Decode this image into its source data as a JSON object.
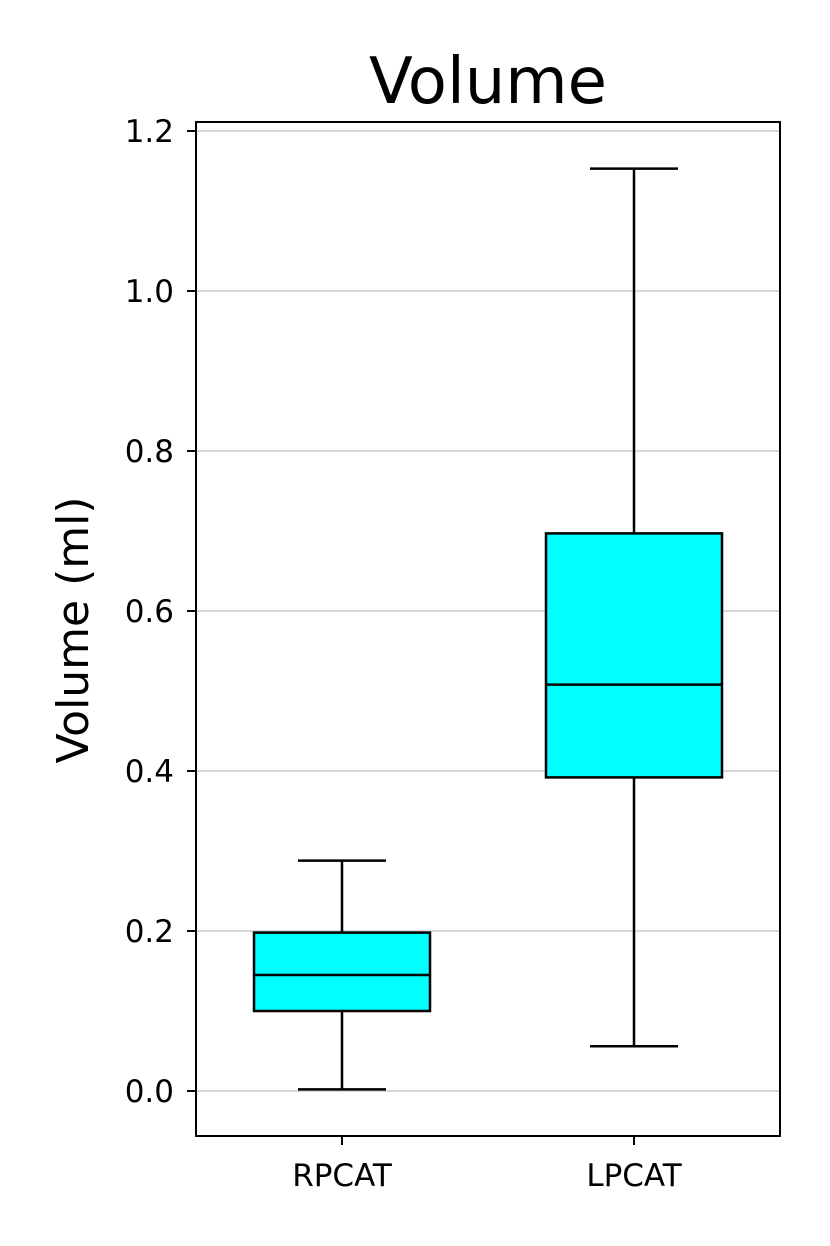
{
  "chart_data": {
    "type": "boxplot",
    "title": "Volume",
    "xlabel": "",
    "ylabel": "Volume (ml)",
    "ylim": [
      -0.055,
      1.21
    ],
    "yticks": [
      0.0,
      0.2,
      0.4,
      0.6,
      0.8,
      1.0,
      1.2
    ],
    "ytick_labels": [
      "0.0",
      "0.2",
      "0.4",
      "0.6",
      "0.8",
      "1.0",
      "1.2"
    ],
    "grid": "horizontal",
    "box_color": "#00ffff",
    "edge_color": "#000000",
    "grid_color": "#cccccc",
    "categories": [
      "RPCAT",
      "LPCAT"
    ],
    "boxes": [
      {
        "whisker_low": 0.002,
        "q1": 0.1,
        "median": 0.145,
        "q3": 0.198,
        "whisker_high": 0.288
      },
      {
        "whisker_low": 0.056,
        "q1": 0.392,
        "median": 0.508,
        "q3": 0.697,
        "whisker_high": 1.153
      }
    ]
  }
}
